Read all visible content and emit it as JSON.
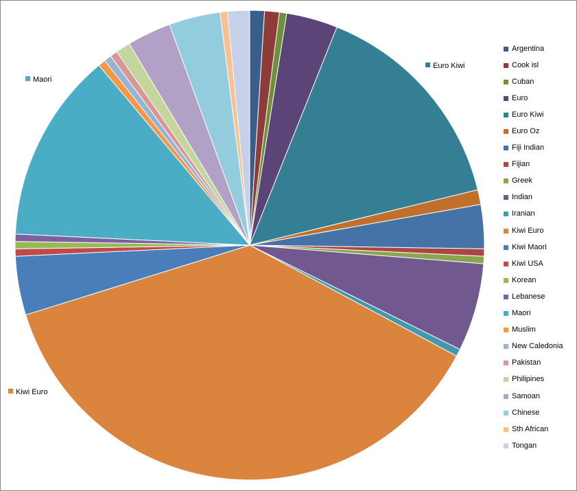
{
  "chart_data": {
    "type": "pie",
    "title": "",
    "legend_position": "right",
    "callouts": [
      "Euro Kiwi",
      "Maori",
      "Kiwi Euro"
    ],
    "slices": [
      {
        "label": "Argentina",
        "value": 1.0,
        "color": "#3A5E8C"
      },
      {
        "label": "Cook isl",
        "value": 1.0,
        "color": "#8E3B3A"
      },
      {
        "label": "Cuban",
        "value": 0.5,
        "color": "#6F8F3B"
      },
      {
        "label": "Euro",
        "value": 3.5,
        "color": "#5A4478"
      },
      {
        "label": "Euro Kiwi",
        "value": 15.0,
        "color": "#347F94"
      },
      {
        "label": "Euro Oz",
        "value": 1.0,
        "color": "#C0702B"
      },
      {
        "label": "Fiji Indian",
        "value": 3.0,
        "color": "#4572A7"
      },
      {
        "label": "Fijian",
        "value": 0.5,
        "color": "#AA4643"
      },
      {
        "label": "Greek",
        "value": 0.5,
        "color": "#89A54E"
      },
      {
        "label": "Indian",
        "value": 6.0,
        "color": "#71588F"
      },
      {
        "label": "Iranian",
        "value": 0.5,
        "color": "#4198AF"
      },
      {
        "label": "Kiwi Euro",
        "value": 37.0,
        "color": "#DB843D"
      },
      {
        "label": "Kiwi Maori",
        "value": 4.0,
        "color": "#4A7EBB"
      },
      {
        "label": "Kiwi USA",
        "value": 0.5,
        "color": "#BE4B48"
      },
      {
        "label": "Korean",
        "value": 0.5,
        "color": "#98B954"
      },
      {
        "label": "Lebanese",
        "value": 0.5,
        "color": "#7D60A0"
      },
      {
        "label": "Maori",
        "value": 13.0,
        "color": "#4BACC6"
      },
      {
        "label": "Muslim",
        "value": 0.5,
        "color": "#F79646"
      },
      {
        "label": "New Caledonia",
        "value": 0.5,
        "color": "#95B3D7"
      },
      {
        "label": "Pakistan",
        "value": 0.5,
        "color": "#D99694"
      },
      {
        "label": "Philipines",
        "value": 1.0,
        "color": "#C3D69B"
      },
      {
        "label": "Samoan",
        "value": 3.0,
        "color": "#B2A1C7"
      },
      {
        "label": "Chinese",
        "value": 3.5,
        "color": "#93CDDD"
      },
      {
        "label": "Sth African",
        "value": 0.5,
        "color": "#FAC090"
      },
      {
        "label": "Tongan",
        "value": 1.5,
        "color": "#C6D0E8"
      }
    ]
  }
}
